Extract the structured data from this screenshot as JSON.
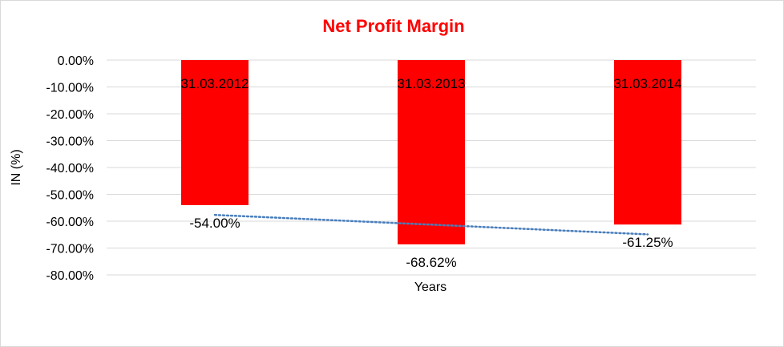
{
  "colors": {
    "bar": "#ff0000",
    "title": "#ff0000",
    "grid": "#d9d9d9",
    "trendline": "#4a7ebb"
  },
  "chart_data": {
    "type": "bar",
    "title": "Net Profit Margin",
    "xlabel": "Years",
    "ylabel": "IN (%)",
    "categories": [
      "31.03.2012",
      "31.03.2013",
      "31.03.2014"
    ],
    "series": [
      {
        "values": [
          -54.0,
          -68.62,
          -61.25
        ],
        "data_labels": [
          "-54.00%",
          "-68.62%",
          "-61.25%"
        ]
      }
    ],
    "ylim": [
      -80,
      0
    ],
    "yticks": [
      "0.00%",
      "-10.00%",
      "-20.00%",
      "-30.00%",
      "-40.00%",
      "-50.00%",
      "-60.00%",
      "-70.00%",
      "-80.00%"
    ],
    "grid": true,
    "legend": "none",
    "trendline": "linear, dotted"
  }
}
